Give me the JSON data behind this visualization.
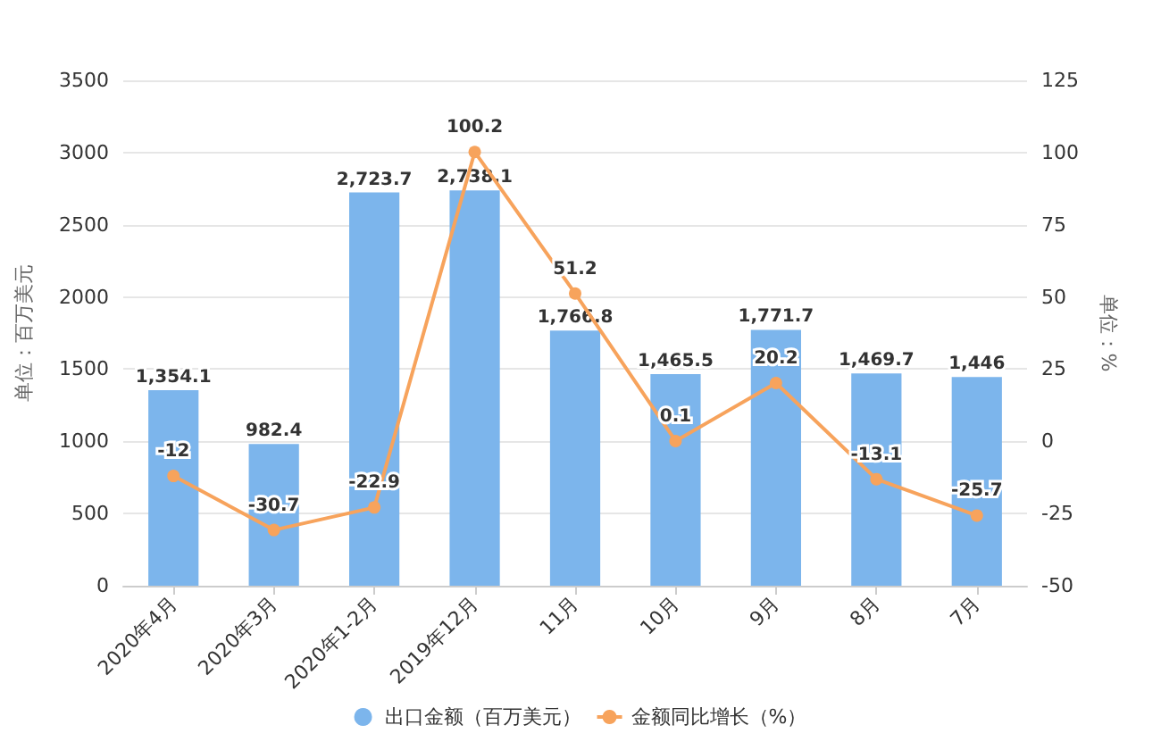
{
  "chart_data": {
    "type": "bar",
    "ylabel": "单位：百万美元",
    "y2label": "单位：%",
    "categories": [
      "2020年4月",
      "2020年3月",
      "2020年1-2月",
      "2019年12月",
      "11月",
      "10月",
      "9月",
      "8月",
      "7月"
    ],
    "series": [
      {
        "name": "出口金额（百万美元）",
        "color": "#7cb5ec",
        "values": [
          1354.1,
          982.4,
          2723.7,
          2738.1,
          1766.8,
          1465.5,
          1771.7,
          1469.7,
          1446
        ],
        "value_labels": [
          "1,354.1",
          "982.4",
          "2,723.7",
          "2,738.1",
          "1,766.8",
          "1,465.5",
          "1,771.7",
          "1,469.7",
          "1,446"
        ]
      },
      {
        "name": "金额同比增长（%）",
        "type": "line",
        "axis": "y2",
        "color": "#f7a35c",
        "marker": "circle",
        "values": [
          -12,
          -30.7,
          -22.9,
          100.2,
          51.2,
          0.1,
          20.2,
          -13.1,
          -25.7
        ],
        "value_labels": [
          "-12",
          "-30.7",
          "-22.9",
          "100.2",
          "51.2",
          "0.1",
          "20.2",
          "-13.1",
          "-25.7"
        ]
      }
    ],
    "ylim": [
      0,
      3500
    ],
    "yticks": [
      0,
      500,
      1000,
      1500,
      2000,
      2500,
      3000,
      3500
    ],
    "y2lim": [
      -50,
      125
    ],
    "y2ticks": [
      -50,
      -25,
      0,
      25,
      50,
      75,
      100,
      125
    ],
    "grid": "y",
    "legend": "bottom"
  }
}
